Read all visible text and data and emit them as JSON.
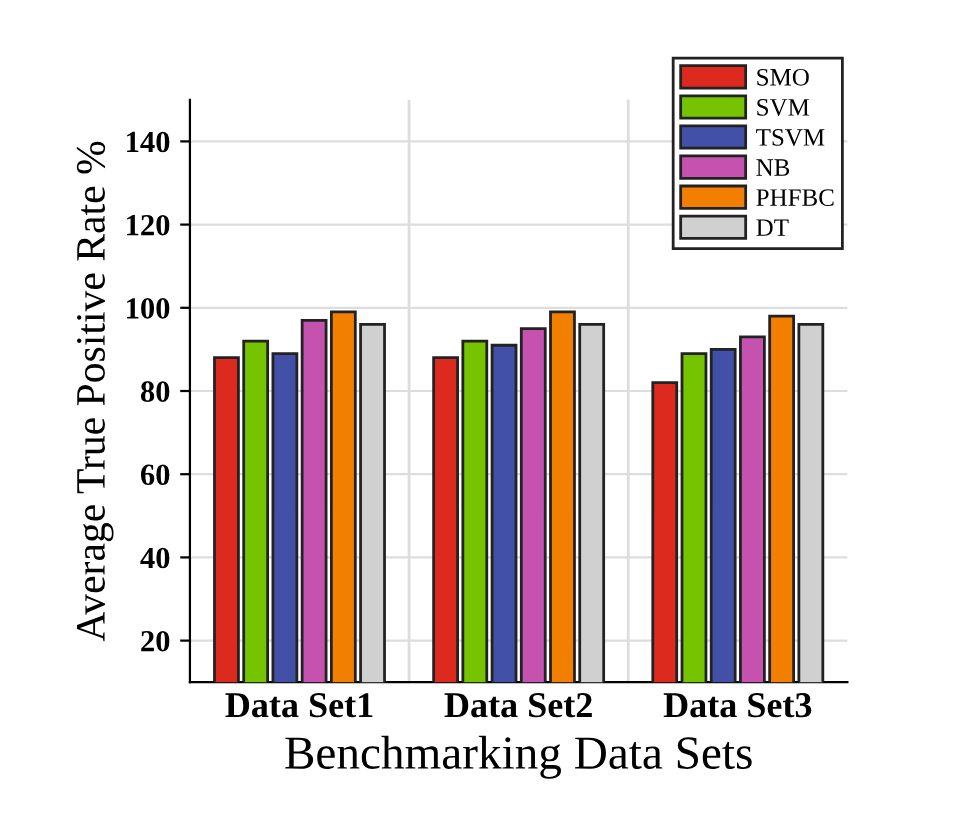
{
  "chart_data": {
    "type": "bar",
    "xlabel": "Benchmarking Data Sets",
    "ylabel": "Average True Positive Rate %",
    "categories": [
      "Data Set1",
      "Data Set2",
      "Data Set3"
    ],
    "series": [
      {
        "name": "SMO",
        "color": "#dc2a1e",
        "values": [
          88,
          88,
          82
        ]
      },
      {
        "name": "SVM",
        "color": "#76c300",
        "values": [
          92,
          92,
          89
        ]
      },
      {
        "name": "TSVM",
        "color": "#4250a8",
        "values": [
          89,
          91,
          90
        ]
      },
      {
        "name": "NB",
        "color": "#c652b0",
        "values": [
          97,
          95,
          93
        ]
      },
      {
        "name": "PHFBC",
        "color": "#f27f00",
        "values": [
          99,
          99,
          98
        ]
      },
      {
        "name": "DT",
        "color": "#d0d0d0",
        "values": [
          96,
          96,
          96
        ]
      }
    ],
    "ylim": [
      10,
      150
    ],
    "yticks": [
      20,
      40,
      60,
      80,
      100,
      120,
      140
    ],
    "grid": true,
    "legend": "top right"
  }
}
